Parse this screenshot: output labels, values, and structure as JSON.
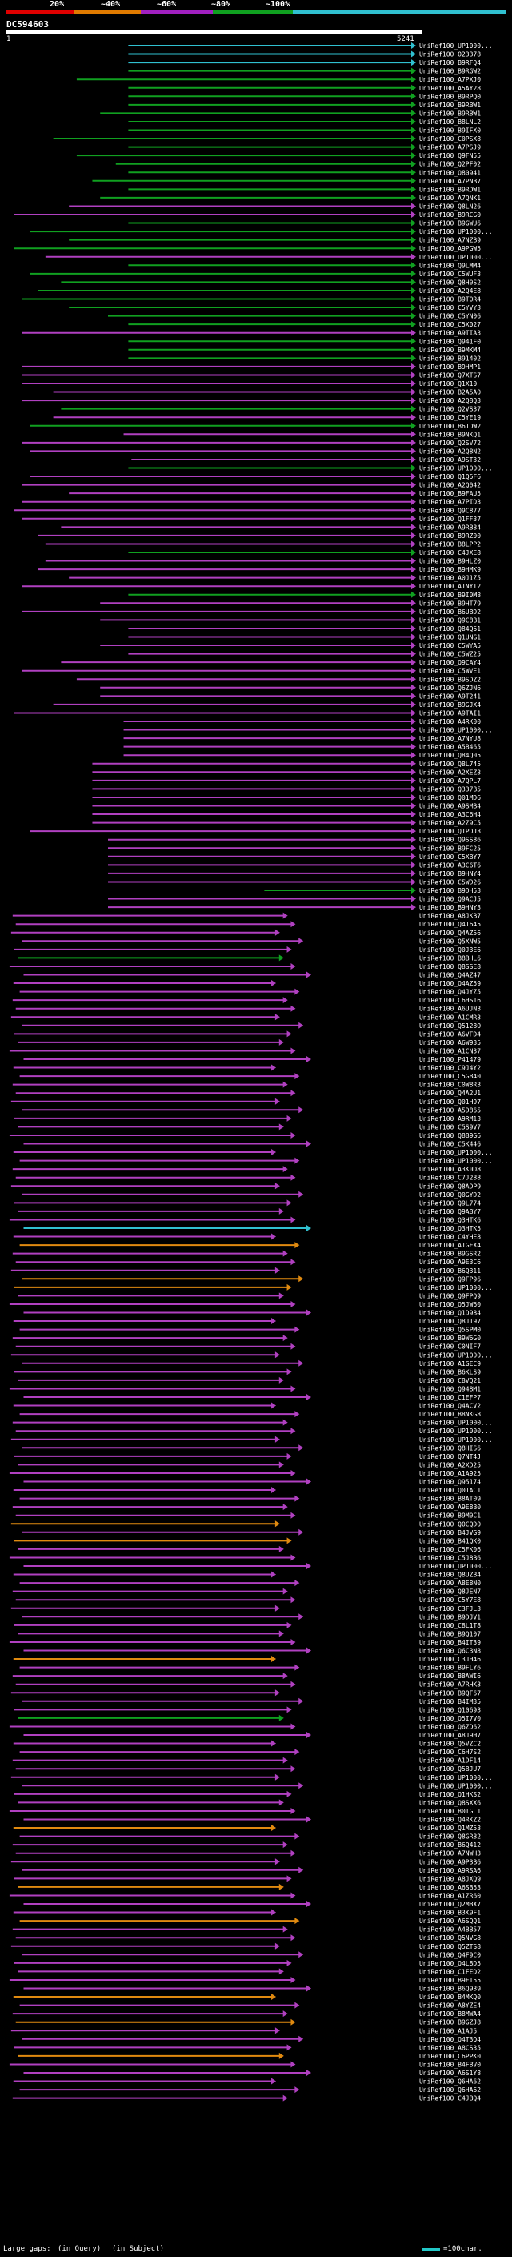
{
  "legend": {
    "labels": [
      "20%",
      "~40%",
      "~60%",
      "~80%",
      "~100%"
    ],
    "colors": [
      "#e00000",
      "#e07a00",
      "#a020c0",
      "#10a020",
      "#30c0d0"
    ]
  },
  "query": {
    "name": "DC594603",
    "start": "1",
    "end": "5241"
  },
  "chart_data": {
    "type": "alignment-overview",
    "query_length": 5241,
    "subjects": [
      {
        "label": "UniRef100_UP1000...",
        "start": 1560,
        "end": 5241,
        "color": "cyan"
      },
      {
        "label": "UniRef100_O23378",
        "start": 1560,
        "end": 5241,
        "color": "cyan"
      },
      {
        "label": "UniRef100_B9RFQ4",
        "start": 1560,
        "end": 5241,
        "color": "cyan"
      },
      {
        "label": "UniRef100_B9RGW2",
        "start": 1560,
        "end": 5241,
        "color": "green"
      },
      {
        "label": "UniRef100_A7PXJ0",
        "start": 900,
        "end": 5241,
        "color": "green"
      },
      {
        "label": "UniRef100_A5AY28",
        "start": 1560,
        "end": 5241,
        "color": "green"
      },
      {
        "label": "UniRef100_B9RPQ0",
        "start": 1560,
        "end": 5241,
        "color": "green"
      },
      {
        "label": "UniRef100_B9RBW1",
        "start": 1560,
        "end": 5241,
        "color": "green"
      },
      {
        "label": "UniRef100_B9RBW1",
        "start": 1200,
        "end": 5241,
        "color": "green"
      },
      {
        "label": "UniRef100_B8LNL2",
        "start": 1560,
        "end": 5241,
        "color": "green"
      },
      {
        "label": "UniRef100_B9IFX0",
        "start": 1560,
        "end": 5241,
        "color": "green"
      },
      {
        "label": "UniRef100_C0PSX8",
        "start": 600,
        "end": 5241,
        "color": "green"
      },
      {
        "label": "UniRef100_A7PSJ9",
        "start": 1560,
        "end": 5241,
        "color": "green"
      },
      {
        "label": "UniRef100_Q9FN55",
        "start": 900,
        "end": 5241,
        "color": "green"
      },
      {
        "label": "UniRef100_Q2PF02",
        "start": 1400,
        "end": 5241,
        "color": "green"
      },
      {
        "label": "UniRef100_O80941",
        "start": 1560,
        "end": 5241,
        "color": "green"
      },
      {
        "label": "UniRef100_A7PNB7",
        "start": 1100,
        "end": 5241,
        "color": "green"
      },
      {
        "label": "UniRef100_B9RDW1",
        "start": 1560,
        "end": 5241,
        "color": "green"
      },
      {
        "label": "UniRef100_A7QNK1",
        "start": 1200,
        "end": 5241,
        "color": "green"
      },
      {
        "label": "UniRef100_Q8LN26",
        "start": 800,
        "end": 5241,
        "color": "purple"
      },
      {
        "label": "UniRef100_B9RCG0",
        "start": 100,
        "end": 5241,
        "color": "purple"
      },
      {
        "label": "UniRef100_B9GWU6",
        "start": 1560,
        "end": 5241,
        "color": "green"
      },
      {
        "label": "UniRef100_UP1000...",
        "start": 300,
        "end": 5241,
        "color": "green"
      },
      {
        "label": "UniRef100_A7NZB9",
        "start": 800,
        "end": 5241,
        "color": "green"
      },
      {
        "label": "UniRef100_A9PGW5",
        "start": 100,
        "end": 5241,
        "color": "green"
      },
      {
        "label": "UniRef100_UP1000...",
        "start": 500,
        "end": 5241,
        "color": "purple"
      },
      {
        "label": "UniRef100_Q9LMM4",
        "start": 1560,
        "end": 5241,
        "color": "green"
      },
      {
        "label": "UniRef100_C5WUF3",
        "start": 300,
        "end": 5241,
        "color": "green"
      },
      {
        "label": "UniRef100_Q8H0S2",
        "start": 700,
        "end": 5241,
        "color": "green"
      },
      {
        "label": "UniRef100_A2Q4E8",
        "start": 400,
        "end": 5241,
        "color": "green"
      },
      {
        "label": "UniRef100_B9T0R4",
        "start": 200,
        "end": 5241,
        "color": "green"
      },
      {
        "label": "UniRef100_C5YVY3",
        "start": 800,
        "end": 5241,
        "color": "green"
      },
      {
        "label": "UniRef100_C5YN06",
        "start": 1300,
        "end": 5241,
        "color": "green"
      },
      {
        "label": "UniRef100_C5X027",
        "start": 1560,
        "end": 5241,
        "color": "green"
      },
      {
        "label": "UniRef100_A9TIA3",
        "start": 200,
        "end": 5241,
        "color": "purple"
      },
      {
        "label": "UniRef100_Q941F0",
        "start": 1560,
        "end": 5241,
        "color": "green"
      },
      {
        "label": "UniRef100_B9MKM4",
        "start": 1560,
        "end": 5241,
        "color": "green"
      },
      {
        "label": "UniRef100_B91402",
        "start": 1560,
        "end": 5241,
        "color": "green"
      },
      {
        "label": "UniRef100_B9HMP1",
        "start": 200,
        "end": 5241,
        "color": "purple"
      },
      {
        "label": "UniRef100_Q7XTS7",
        "start": 200,
        "end": 5241,
        "color": "purple"
      },
      {
        "label": "UniRef100_Q1X10",
        "start": 200,
        "end": 5241,
        "color": "purple"
      },
      {
        "label": "UniRef100_B2A5A0",
        "start": 600,
        "end": 5241,
        "color": "purple"
      },
      {
        "label": "UniRef100_A2Q8Q3",
        "start": 200,
        "end": 5241,
        "color": "purple"
      },
      {
        "label": "UniRef100_Q2VS37",
        "start": 700,
        "end": 5241,
        "color": "green"
      },
      {
        "label": "UniRef100_C5YE19",
        "start": 600,
        "end": 5241,
        "color": "purple"
      },
      {
        "label": "UniRef100_B61DW2",
        "start": 300,
        "end": 5241,
        "color": "green"
      },
      {
        "label": "UniRef100_B9NKQ1",
        "start": 1500,
        "end": 5241,
        "color": "purple"
      },
      {
        "label": "UniRef100_Q2SV72",
        "start": 200,
        "end": 5241,
        "color": "purple"
      },
      {
        "label": "UniRef100_A2Q8N2",
        "start": 300,
        "end": 5241,
        "color": "purple"
      },
      {
        "label": "UniRef100_A9ST32",
        "start": 1600,
        "end": 5241,
        "color": "purple"
      },
      {
        "label": "UniRef100_UP1000...",
        "start": 1560,
        "end": 5241,
        "color": "green"
      },
      {
        "label": "UniRef100_Q1Q5F6",
        "start": 300,
        "end": 5241,
        "color": "purple"
      },
      {
        "label": "UniRef100_A2Q042",
        "start": 200,
        "end": 5241,
        "color": "purple"
      },
      {
        "label": "UniRef100_B9FAU5",
        "start": 800,
        "end": 5241,
        "color": "purple"
      },
      {
        "label": "UniRef100_A7PID3",
        "start": 200,
        "end": 5241,
        "color": "purple"
      },
      {
        "label": "UniRef100_Q9C877",
        "start": 100,
        "end": 5241,
        "color": "purple"
      },
      {
        "label": "UniRef100_Q1FF37",
        "start": 200,
        "end": 5241,
        "color": "purple"
      },
      {
        "label": "UniRef100_A9RB84",
        "start": 700,
        "end": 5241,
        "color": "purple"
      },
      {
        "label": "UniRef100_B9RZ00",
        "start": 400,
        "end": 5241,
        "color": "purple"
      },
      {
        "label": "UniRef100_B8LPP2",
        "start": 500,
        "end": 5241,
        "color": "purple"
      },
      {
        "label": "UniRef100_C4JXE8",
        "start": 1560,
        "end": 5241,
        "color": "green"
      },
      {
        "label": "UniRef100_B9HLZ0",
        "start": 500,
        "end": 5241,
        "color": "purple"
      },
      {
        "label": "UniRef100_B9HMK9",
        "start": 400,
        "end": 5241,
        "color": "purple"
      },
      {
        "label": "UniRef100_A0J1Z5",
        "start": 800,
        "end": 5241,
        "color": "purple"
      },
      {
        "label": "UniRef100_A1NYT2",
        "start": 200,
        "end": 5241,
        "color": "purple"
      },
      {
        "label": "UniRef100_B9I0M8",
        "start": 1560,
        "end": 5241,
        "color": "green"
      },
      {
        "label": "UniRef100_B9HT79",
        "start": 1200,
        "end": 5241,
        "color": "purple"
      },
      {
        "label": "UniRef100_B6UBD2",
        "start": 200,
        "end": 5241,
        "color": "purple"
      },
      {
        "label": "UniRef100_Q9C8B1",
        "start": 1200,
        "end": 5241,
        "color": "purple"
      },
      {
        "label": "UniRef100_Q84Q61",
        "start": 1560,
        "end": 5241,
        "color": "purple"
      },
      {
        "label": "UniRef100_Q1UNG1",
        "start": 1560,
        "end": 5241,
        "color": "purple"
      },
      {
        "label": "UniRef100_C5WYA5",
        "start": 1200,
        "end": 5241,
        "color": "purple"
      },
      {
        "label": "UniRef100_C5WZ25",
        "start": 1560,
        "end": 5241,
        "color": "purple"
      },
      {
        "label": "UniRef100_Q9CAY4",
        "start": 700,
        "end": 5241,
        "color": "purple"
      },
      {
        "label": "UniRef100_C5WVE1",
        "start": 200,
        "end": 5241,
        "color": "purple"
      },
      {
        "label": "UniRef100_B9SDZ2",
        "start": 900,
        "end": 5241,
        "color": "purple"
      },
      {
        "label": "UniRef100_Q6ZJN6",
        "start": 1200,
        "end": 5241,
        "color": "purple"
      },
      {
        "label": "UniRef100_A9T241",
        "start": 1200,
        "end": 5241,
        "color": "purple"
      },
      {
        "label": "UniRef100_B9GJX4",
        "start": 600,
        "end": 5241,
        "color": "purple"
      },
      {
        "label": "UniRef100_A9TAI1",
        "start": 100,
        "end": 5241,
        "color": "purple"
      },
      {
        "label": "UniRef100_A4RK00",
        "start": 1500,
        "end": 5241,
        "color": "purple"
      },
      {
        "label": "UniRef100_UP1000...",
        "start": 1500,
        "end": 5241,
        "color": "purple"
      },
      {
        "label": "UniRef100_A7NYU8",
        "start": 1500,
        "end": 5241,
        "color": "purple"
      },
      {
        "label": "UniRef100_A5B465",
        "start": 1500,
        "end": 5241,
        "color": "purple"
      },
      {
        "label": "UniRef100_Q84Q05",
        "start": 1500,
        "end": 5241,
        "color": "purple"
      },
      {
        "label": "UniRef100_Q8L745",
        "start": 1100,
        "end": 5241,
        "color": "purple"
      },
      {
        "label": "UniRef100_A2XEZ3",
        "start": 1100,
        "end": 5241,
        "color": "purple"
      },
      {
        "label": "UniRef100_A7QPL7",
        "start": 1100,
        "end": 5241,
        "color": "purple"
      },
      {
        "label": "UniRef100_Q337B5",
        "start": 1100,
        "end": 5241,
        "color": "purple"
      },
      {
        "label": "UniRef100_Q01MD6",
        "start": 1100,
        "end": 5241,
        "color": "purple"
      },
      {
        "label": "UniRef100_A9SMB4",
        "start": 1100,
        "end": 5241,
        "color": "purple"
      },
      {
        "label": "UniRef100_A3C6H4",
        "start": 1100,
        "end": 5241,
        "color": "purple"
      },
      {
        "label": "UniRef100_A2Z9C5",
        "start": 1100,
        "end": 5241,
        "color": "purple"
      },
      {
        "label": "UniRef100_Q1PDJ3",
        "start": 300,
        "end": 5241,
        "color": "purple"
      },
      {
        "label": "UniRef100_Q9SS86",
        "start": 1300,
        "end": 5241,
        "color": "purple"
      },
      {
        "label": "UniRef100_B9FC25",
        "start": 1300,
        "end": 5241,
        "color": "purple"
      },
      {
        "label": "UniRef100_C5XBY7",
        "start": 1300,
        "end": 5241,
        "color": "purple"
      },
      {
        "label": "UniRef100_A3C6T6",
        "start": 1300,
        "end": 5241,
        "color": "purple"
      },
      {
        "label": "UniRef100_B9HNY4",
        "start": 1300,
        "end": 5241,
        "color": "purple"
      },
      {
        "label": "UniRef100_C5WD26",
        "start": 1300,
        "end": 5241,
        "color": "purple"
      },
      {
        "label": "UniRef100_B9DH53",
        "start": 3300,
        "end": 5241,
        "color": "green"
      },
      {
        "label": "UniRef100_Q9ACJ5",
        "start": 1300,
        "end": 5241,
        "color": "purple"
      },
      {
        "label": "UniRef100_B9HNY3",
        "start": 1300,
        "end": 5241,
        "color": "purple"
      }
    ],
    "lower_block": {
      "name_labels": [
        "UniRef100_A8JKB7",
        "UniRef100_Q41645",
        "UniRef100_Q4AZ56",
        "UniRef100_Q5XNW5",
        "UniRef100_Q0J3E6",
        "UniRef100_B8BHL6",
        "UniRef100_Q8SSE8",
        "UniRef100_Q4AZ47",
        "UniRef100_Q4AZ59",
        "UniRef100_Q4JYZ5",
        "UniRef100_C6HS16",
        "UniRef100_A6UJN3",
        "UniRef100_A1CMR3",
        "UniRef100_Q5128O",
        "UniRef100_A6VFD4",
        "UniRef100_A6W935",
        "UniRef100_A1CN37",
        "UniRef100_P41479",
        "UniRef100_C9J4Y2",
        "UniRef100_C5GB40",
        "UniRef100_C0W8R3",
        "UniRef100_Q4A2U1",
        "UniRef100_Q01H97",
        "UniRef100_A5D865",
        "UniRef100_A9RM13",
        "UniRef100_C5S9V7",
        "UniRef100_Q8B9G6",
        "UniRef100_C5K446",
        "UniRef100_UP1000...",
        "UniRef100_UP1000...",
        "UniRef100_A3K0D8",
        "UniRef100_C7J288",
        "UniRef100_Q8ADP9",
        "UniRef100_Q0GYD2",
        "UniRef100_Q9L774",
        "UniRef100_Q9ABY7",
        "UniRef100_Q3HTK6",
        "UniRef100_Q3HTK5",
        "UniRef100_C4YHE8",
        "UniRef100_A1GEX4",
        "UniRef100_B9GSR2",
        "UniRef100_A9E3C6",
        "UniRef100_B6Q311",
        "UniRef100_Q9FP96",
        "UniRef100_UP1000...",
        "UniRef100_Q9FPQ9",
        "UniRef100_Q5JW60",
        "UniRef100_Q1D984",
        "UniRef100_Q8J197",
        "UniRef100_Q5SPM0",
        "UniRef100_B9W6G0",
        "UniRef100_C0NIF7",
        "UniRef100_UP1000...",
        "UniRef100_A1GEC9",
        "UniRef100_B6KLS9",
        "UniRef100_C8VQ21",
        "UniRef100_Q948M1",
        "UniRef100_C1EFP7",
        "UniRef100_Q4ACV2",
        "UniRef100_B8NKG8",
        "UniRef100_UP1000...",
        "UniRef100_UP1000...",
        "UniRef100_UP1000...",
        "UniRef100_Q8HIS6",
        "UniRef100_Q7NT4J",
        "UniRef100_A2XD25",
        "UniRef100_A1A925",
        "UniRef100_Q95174",
        "UniRef100_Q01AC1",
        "UniRef100_B8AT09",
        "UniRef100_A9E8B0",
        "UniRef100_B9M0C1",
        "UniRef100_Q0CQD0",
        "UniRef100_B4JVG9",
        "UniRef100_B41QK0",
        "UniRef100_C5FK06",
        "UniRef100_C5J8B6",
        "UniRef100_UP1000...",
        "UniRef100_Q8UZB4",
        "UniRef100_A8E8N0",
        "UniRef100_Q8JEN7",
        "UniRef100_C5Y7E8",
        "UniRef100_C3FJL3",
        "UniRef100_B9DJV1",
        "UniRef100_C8L1T8",
        "UniRef100_B9Q107",
        "UniRef100_B4IT39",
        "UniRef100_Q6C3N8",
        "UniRef100_C3JH46",
        "UniRef100_B9FLY6",
        "UniRef100_B8AWI6",
        "UniRef100_A7RHK3",
        "UniRef100_B9QF67",
        "UniRef100_B4IM35",
        "UniRef100_Q10693",
        "UniRef100_Q5I7V0",
        "UniRef100_Q6ZD62",
        "UniRef100_A8J9H7",
        "UniRef100_Q5VZC2",
        "UniRef100_C6H7S2",
        "UniRef100_A1DF14",
        "UniRef100_Q5BJU7",
        "UniRef100_UP1000...",
        "UniRef100_UP1000...",
        "UniRef100_Q1HKS2",
        "UniRef100_Q8SXX6",
        "UniRef100_B0TGL1",
        "UniRef100_Q4RKZ2",
        "UniRef100_Q1MZ53",
        "UniRef100_Q8GR82",
        "UniRef100_B6Q412",
        "UniRef100_A7NWH3",
        "UniRef100_A9P3B6",
        "UniRef100_A9RSA6",
        "UniRef100_A8JXQ9",
        "UniRef100_A6SB53",
        "UniRef100_A1ZR60",
        "UniRef100_Q2MBX7",
        "UniRef100_B3K9F1",
        "UniRef100_A6SQQ1",
        "UniRef100_A4BB57",
        "UniRef100_Q5NVG8",
        "UniRef100_Q5ZTS8",
        "UniRef100_Q4F9C0",
        "UniRef100_Q4L8D5",
        "UniRef100_C1FED2",
        "UniRef100_B9FT55",
        "UniRef100_B6Q939",
        "UniRef100_B4MKQ0",
        "UniRef100_A8YZE4",
        "UniRef100_B8MWA4",
        "UniRef100_B9GZJ8",
        "UniRef100_A1AJ5",
        "UniRef100_Q4T3Q4",
        "UniRef100_A8CS35",
        "UniRef100_C6PPK0",
        "UniRef100_B4FBV0",
        "UniRef100_A6S1Y8",
        "UniRef100_Q6HA62",
        "UniRef100_Q6HA62",
        "UniRef100_C4JBQ4"
      ],
      "colors": [
        "purple",
        "purple",
        "purple",
        "purple",
        "purple",
        "green",
        "purple",
        "purple",
        "purple",
        "purple",
        "purple",
        "purple",
        "purple",
        "purple",
        "purple",
        "purple",
        "purple",
        "purple",
        "purple",
        "purple",
        "purple",
        "purple",
        "purple",
        "purple",
        "purple",
        "purple",
        "purple",
        "purple",
        "purple",
        "purple",
        "purple",
        "purple",
        "purple",
        "purple",
        "purple",
        "purple",
        "purple",
        "cyan",
        "purple",
        "orange",
        "purple",
        "purple",
        "purple",
        "orange",
        "orange",
        "purple",
        "purple",
        "purple",
        "purple",
        "purple",
        "purple",
        "purple",
        "purple",
        "purple",
        "purple",
        "purple",
        "purple",
        "purple",
        "purple",
        "purple",
        "purple",
        "purple",
        "purple",
        "purple",
        "purple",
        "purple",
        "purple",
        "purple",
        "purple",
        "purple",
        "purple",
        "purple",
        "orange",
        "purple",
        "orange",
        "purple",
        "purple",
        "purple",
        "purple",
        "purple",
        "purple",
        "purple",
        "purple",
        "purple",
        "purple",
        "purple",
        "purple",
        "purple",
        "orange",
        "purple",
        "purple",
        "purple",
        "purple",
        "purple",
        "purple",
        "green",
        "purple",
        "purple",
        "purple",
        "purple",
        "purple",
        "purple",
        "purple",
        "purple",
        "purple",
        "purple",
        "purple",
        "purple",
        "orange",
        "purple",
        "purple",
        "purple",
        "purple",
        "purple",
        "purple",
        "orange",
        "purple",
        "purple",
        "purple",
        "orange",
        "purple",
        "purple",
        "purple",
        "purple",
        "purple",
        "purple",
        "purple",
        "purple",
        "orange",
        "purple",
        "purple",
        "orange",
        "purple",
        "purple",
        "purple",
        "orange",
        "purple",
        "purple",
        "purple"
      ]
    }
  },
  "bottom_legend": {
    "gaps_label": "Large gaps:",
    "gap_query": "(in Query)",
    "gap_subject": "(in Subject)",
    "scale_label": "=100char."
  }
}
